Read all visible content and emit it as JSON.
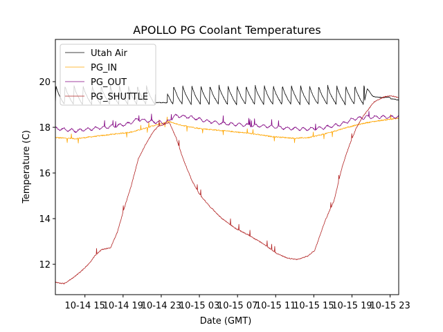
{
  "chart_data": {
    "type": "line",
    "title": "APOLLO PG Coolant Temperatures",
    "xlabel": "Date (GMT)",
    "ylabel": "Temperature (C)",
    "x_units": "hours since 10-14 00:00 GMT",
    "xlim": [
      11.9,
      47.9
    ],
    "ylim": [
      10.67,
      21.85
    ],
    "grid": false,
    "legend_position": "top-left",
    "x_ticks": [
      {
        "value": 15,
        "label": "10-14 15"
      },
      {
        "value": 19,
        "label": "10-14 19"
      },
      {
        "value": 23,
        "label": "10-14 23"
      },
      {
        "value": 27,
        "label": "10-15 03"
      },
      {
        "value": 31,
        "label": "10-15 07"
      },
      {
        "value": 35,
        "label": "10-15 11"
      },
      {
        "value": 39,
        "label": "10-15 15"
      },
      {
        "value": 43,
        "label": "10-15 19"
      },
      {
        "value": 47,
        "label": "10-15 23"
      }
    ],
    "y_ticks": [
      {
        "value": 12,
        "label": "12"
      },
      {
        "value": 14,
        "label": "14"
      },
      {
        "value": 16,
        "label": "16"
      },
      {
        "value": 18,
        "label": "18"
      },
      {
        "value": 20,
        "label": "20"
      }
    ],
    "series": [
      {
        "name": "Utah Air",
        "color": "#000000",
        "pattern": "sawtooth",
        "sawtooth": {
          "low": 19.0,
          "high": 19.85,
          "period_hours": 0.95
        },
        "x": [
          11.9,
          22.4,
          22.45,
          23.6,
          23.65,
          44.3,
          44.6,
          45.2,
          46.2,
          46.9,
          47.1,
          47.9
        ],
        "y": [
          19.5,
          19.1,
          19.08,
          19.08,
          19.1,
          19.1,
          19.7,
          19.35,
          19.3,
          19.32,
          19.25,
          19.2
        ],
        "sawtooth_ranges": [
          [
            11.9,
            22.4
          ],
          [
            23.65,
            44.3
          ]
        ]
      },
      {
        "name": "PG_IN",
        "color": "#ffa500",
        "x": [
          11.9,
          14.0,
          16.0,
          18.0,
          20.0,
          22.0,
          23.8,
          25.0,
          27.0,
          29.5,
          32.0,
          34.5,
          37.0,
          38.5,
          40.5,
          42.5,
          44.5,
          46.0,
          47.9
        ],
        "y": [
          17.55,
          17.5,
          17.6,
          17.7,
          17.8,
          18.05,
          18.25,
          18.1,
          17.95,
          17.85,
          17.75,
          17.6,
          17.52,
          17.55,
          17.75,
          18.0,
          18.2,
          18.3,
          18.4
        ]
      },
      {
        "name": "PG_OUT",
        "color": "#800080",
        "x": [
          11.9,
          14.0,
          16.0,
          18.0,
          19.5,
          20.5,
          22.0,
          23.5,
          24.5,
          26.0,
          28.0,
          30.0,
          32.0,
          34.0,
          36.0,
          38.0,
          40.0,
          42.0,
          43.0,
          44.5,
          46.0,
          47.9
        ],
        "y": [
          17.95,
          17.85,
          17.95,
          18.05,
          18.15,
          18.35,
          18.25,
          18.2,
          18.5,
          18.45,
          18.25,
          18.15,
          18.1,
          18.05,
          17.97,
          17.92,
          17.98,
          18.15,
          18.35,
          18.45,
          18.45,
          18.45
        ]
      },
      {
        "name": "PG_SHUTTLE",
        "color": "#b22222",
        "x": [
          11.9,
          12.82,
          13.69,
          14.78,
          15.51,
          16.02,
          16.74,
          17.69,
          18.41,
          19.14,
          19.86,
          20.59,
          21.31,
          22.04,
          22.62,
          23.85,
          24.58,
          25.3,
          26.25,
          26.97,
          28.06,
          29.3,
          30.75,
          32.2,
          33.65,
          35.1,
          36.19,
          37.28,
          38.37,
          39.09,
          40.18,
          41.12,
          41.99,
          42.72,
          43.45,
          44.17,
          45.26,
          46.35,
          47.08,
          47.87
        ],
        "y": [
          11.21,
          11.15,
          11.39,
          11.76,
          12.06,
          12.36,
          12.64,
          12.73,
          13.42,
          14.48,
          15.45,
          16.61,
          17.21,
          17.73,
          18.03,
          18.21,
          17.52,
          16.61,
          15.64,
          15.09,
          14.55,
          14.03,
          13.58,
          13.27,
          12.91,
          12.48,
          12.27,
          12.21,
          12.36,
          12.61,
          13.9,
          14.79,
          16.3,
          17.21,
          17.97,
          18.48,
          19.09,
          19.33,
          19.39,
          19.3
        ]
      }
    ]
  }
}
